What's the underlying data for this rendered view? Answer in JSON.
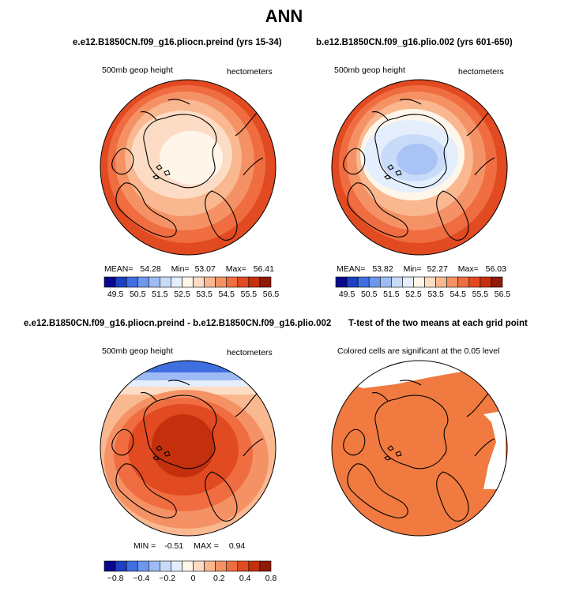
{
  "title": "ANN",
  "panels": [
    {
      "id": "p1",
      "title": "e.e12.B1850CN.f09_g16.pliocn.preind (yrs 15-34)",
      "left_label": "500mb geop height",
      "right_label": "hectometers",
      "stats": {
        "mean_label": "MEAN=",
        "mean": "54.28",
        "min_label": "Min=",
        "min": "53.07",
        "max_label": "Max=",
        "max": "56.41"
      }
    },
    {
      "id": "p2",
      "title": "b.e12.B1850CN.f09_g16.plio.002 (yrs 601-650)",
      "left_label": "500mb geop height",
      "right_label": "hectometers",
      "stats": {
        "mean_label": "MEAN=",
        "mean": "53.82",
        "min_label": "Min=",
        "min": "52.27",
        "max_label": "Max=",
        "max": "56.03"
      }
    },
    {
      "id": "p3",
      "title": "e.e12.B1850CN.f09_g16.pliocn.preind - b.e12.B1850CN.f09_g16.plio.002",
      "left_label": "500mb geop height",
      "right_label": "hectometers",
      "stats": {
        "min_label": "MIN =",
        "min": "-0.51",
        "max_label": "MAX =",
        "max": "0.94"
      }
    },
    {
      "id": "p4",
      "title": "T-test of the two means at each grid point",
      "left_label": "Colored cells are significant at the 0.05 level",
      "right_label": ""
    }
  ],
  "colorbars": {
    "absolute": {
      "labels": [
        "49.5",
        "50.5",
        "51.5",
        "52.5",
        "53.5",
        "54.5",
        "55.5",
        "56.5"
      ],
      "colors": [
        "#08088c",
        "#1c3fc4",
        "#3f6fe0",
        "#6e97ef",
        "#9ebbf5",
        "#c8dcfa",
        "#e4eefd",
        "#fff6ea",
        "#fcdcc4",
        "#f9b890",
        "#f59265",
        "#ef6d40",
        "#e24a22",
        "#c4300e",
        "#8f1a08"
      ]
    },
    "difference": {
      "labels": [
        "−0.8",
        "−0.4",
        "−0.2",
        "0",
        "0.2",
        "0.4",
        "0.8"
      ],
      "colors": [
        "#08088c",
        "#1c3fc4",
        "#3f6fe0",
        "#6e97ef",
        "#9ebbf5",
        "#c8dcfa",
        "#e4eefd",
        "#fff6ea",
        "#fcdcc4",
        "#f9b890",
        "#f59265",
        "#ef6d40",
        "#e24a22",
        "#c4300e",
        "#8f1a08"
      ]
    }
  },
  "chart_data": [
    {
      "type": "heatmap",
      "projection": "polar-stereographic-north",
      "title": "e.e12.B1850CN.f09_g16.pliocn.preind (yrs 15-34)",
      "variable": "500mb geop height",
      "units": "hectometers",
      "mean": 54.28,
      "min": 53.07,
      "max": 56.41,
      "contour_levels": [
        49.5,
        50,
        50.5,
        51,
        51.5,
        52,
        52.5,
        53,
        53.5,
        54,
        54.5,
        55,
        55.5,
        56,
        56.5
      ]
    },
    {
      "type": "heatmap",
      "projection": "polar-stereographic-north",
      "title": "b.e12.B1850CN.f09_g16.plio.002 (yrs 601-650)",
      "variable": "500mb geop height",
      "units": "hectometers",
      "mean": 53.82,
      "min": 52.27,
      "max": 56.03,
      "contour_levels": [
        49.5,
        50,
        50.5,
        51,
        51.5,
        52,
        52.5,
        53,
        53.5,
        54,
        54.5,
        55,
        55.5,
        56,
        56.5
      ]
    },
    {
      "type": "heatmap",
      "projection": "polar-stereographic-north",
      "title": "e.e12.B1850CN.f09_g16.pliocn.preind - b.e12.B1850CN.f09_g16.plio.002",
      "variable": "500mb geop height",
      "units": "hectometers",
      "min": -0.51,
      "max": 0.94,
      "contour_levels": [
        -0.8,
        -0.6,
        -0.4,
        -0.3,
        -0.2,
        -0.1,
        0,
        0.1,
        0.2,
        0.3,
        0.4,
        0.6,
        0.8
      ]
    },
    {
      "type": "heatmap",
      "projection": "polar-stereographic-north",
      "title": "T-test of the two means at each grid point",
      "note": "Colored cells are significant at the 0.05 level",
      "significant_color": "#f07a40"
    }
  ]
}
